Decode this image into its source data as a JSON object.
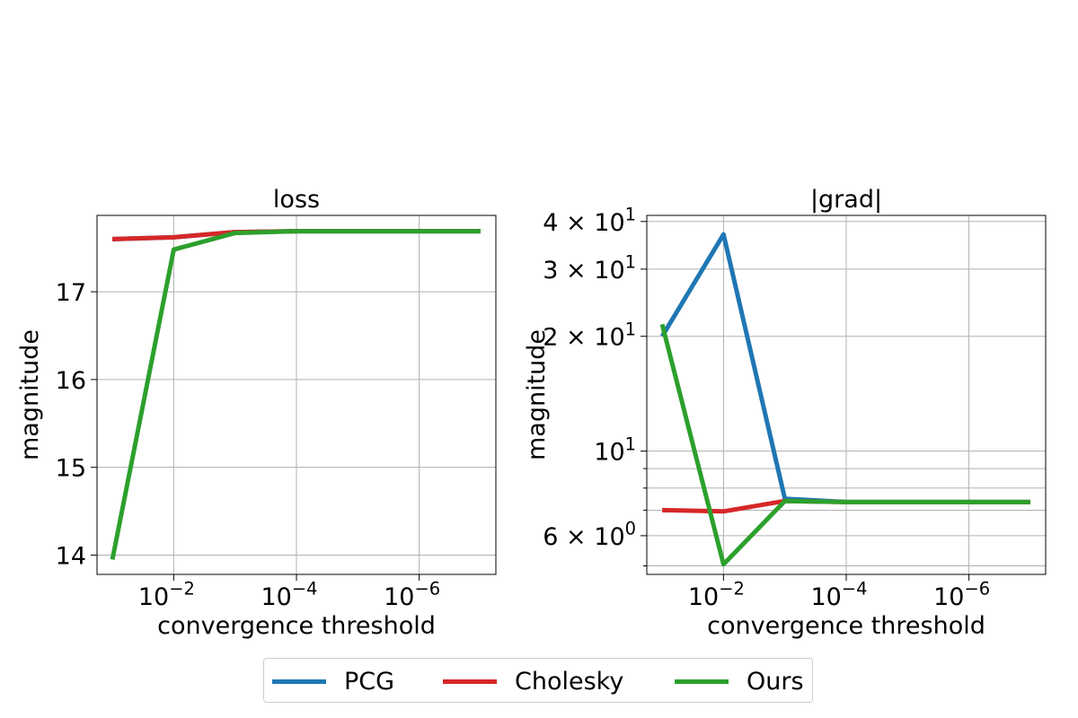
{
  "chart_data": [
    {
      "type": "line",
      "title": "loss",
      "xlabel": "convergence threshold",
      "ylabel": "magnitude",
      "xscale": "log-reversed",
      "x": [
        0.1,
        0.01,
        0.001,
        0.0001,
        1e-05,
        1e-06,
        1e-07
      ],
      "xticks": [
        {
          "value": 0.01,
          "base": "10",
          "exp": "−2"
        },
        {
          "value": 0.0001,
          "base": "10",
          "exp": "−4"
        },
        {
          "value": 1e-06,
          "base": "10",
          "exp": "−6"
        }
      ],
      "yticks": [
        {
          "value": 14,
          "label": "14"
        },
        {
          "value": 15,
          "label": "15"
        },
        {
          "value": 16,
          "label": "16"
        },
        {
          "value": 17,
          "label": "17"
        }
      ],
      "ylim": [
        13.78,
        17.87
      ],
      "grid": true,
      "series": [
        {
          "name": "PCG",
          "color": "#1f77b4",
          "values": [
            17.6,
            17.62,
            17.68,
            17.69,
            17.69,
            17.69,
            17.69
          ]
        },
        {
          "name": "Cholesky",
          "color": "#d62728",
          "values": [
            17.6,
            17.62,
            17.68,
            17.69,
            17.69,
            17.69,
            17.69
          ]
        },
        {
          "name": "Ours",
          "color": "#2ca02c",
          "values": [
            13.95,
            17.48,
            17.67,
            17.69,
            17.69,
            17.69,
            17.69
          ]
        }
      ]
    },
    {
      "type": "line",
      "title": "|grad|",
      "xlabel": "convergence threshold",
      "ylabel": "magnitude",
      "xscale": "log-reversed",
      "yscale": "log",
      "x": [
        0.1,
        0.01,
        0.001,
        0.0001,
        1e-05,
        1e-06,
        1e-07
      ],
      "xticks": [
        {
          "value": 0.01,
          "base": "10",
          "exp": "−2"
        },
        {
          "value": 0.0001,
          "base": "10",
          "exp": "−4"
        },
        {
          "value": 1e-06,
          "base": "10",
          "exp": "−6"
        }
      ],
      "yticks": [
        {
          "value": 6,
          "mantissa": "6 × 10",
          "exp": "0"
        },
        {
          "value": 10,
          "mantissa": "10",
          "exp": "1"
        },
        {
          "value": 20,
          "mantissa": "2 × 10",
          "exp": "1"
        },
        {
          "value": 30,
          "mantissa": "3 × 10",
          "exp": "1"
        },
        {
          "value": 40,
          "mantissa": "4 × 10",
          "exp": "1"
        }
      ],
      "yminor": [
        5,
        7,
        8,
        9
      ],
      "ylim": [
        4.75,
        41.5
      ],
      "grid": true,
      "series": [
        {
          "name": "PCG",
          "color": "#1f77b4",
          "values": [
            20.0,
            37.0,
            7.5,
            7.35,
            7.35,
            7.35,
            7.35
          ]
        },
        {
          "name": "Cholesky",
          "color": "#d62728",
          "values": [
            7.0,
            6.95,
            7.4,
            7.35,
            7.35,
            7.35,
            7.35
          ]
        },
        {
          "name": "Ours",
          "color": "#2ca02c",
          "values": [
            21.5,
            5.05,
            7.4,
            7.35,
            7.35,
            7.35,
            7.35
          ]
        }
      ]
    }
  ],
  "legend": {
    "items": [
      {
        "label": "PCG",
        "color": "#1f77b4"
      },
      {
        "label": "Cholesky",
        "color": "#d62728"
      },
      {
        "label": "Ours",
        "color": "#2ca02c"
      }
    ]
  }
}
